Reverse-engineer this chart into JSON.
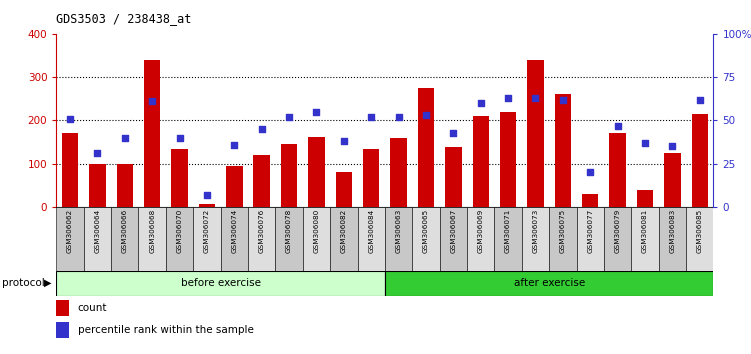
{
  "title": "GDS3503 / 238438_at",
  "categories": [
    "GSM306062",
    "GSM306064",
    "GSM306066",
    "GSM306068",
    "GSM306070",
    "GSM306072",
    "GSM306074",
    "GSM306076",
    "GSM306078",
    "GSM306080",
    "GSM306082",
    "GSM306084",
    "GSM306063",
    "GSM306065",
    "GSM306067",
    "GSM306069",
    "GSM306071",
    "GSM306073",
    "GSM306075",
    "GSM306077",
    "GSM306079",
    "GSM306081",
    "GSM306083",
    "GSM306085"
  ],
  "counts": [
    170,
    100,
    100,
    340,
    135,
    8,
    95,
    120,
    145,
    162,
    80,
    133,
    160,
    275,
    138,
    210,
    220,
    340,
    260,
    30,
    170,
    40,
    125,
    215
  ],
  "percentile_ranks": [
    51,
    31,
    40,
    61,
    40,
    7,
    36,
    45,
    52,
    55,
    38,
    52,
    52,
    53,
    43,
    60,
    63,
    63,
    62,
    20,
    47,
    37,
    35,
    62
  ],
  "before_exercise_count": 12,
  "after_exercise_count": 12,
  "bar_color": "#cc0000",
  "dot_color": "#3333cc",
  "before_bg": "#ccffcc",
  "after_bg": "#33cc33",
  "axis_bg": "#ffffff",
  "ylim_left": [
    0,
    400
  ],
  "ylim_right": [
    0,
    100
  ],
  "yticks_left": [
    0,
    100,
    200,
    300,
    400
  ],
  "grid_values": [
    100,
    200,
    300
  ],
  "legend_count_label": "count",
  "legend_pct_label": "percentile rank within the sample",
  "before_label": "before exercise",
  "after_label": "after exercise",
  "protocol_label": "protocol"
}
